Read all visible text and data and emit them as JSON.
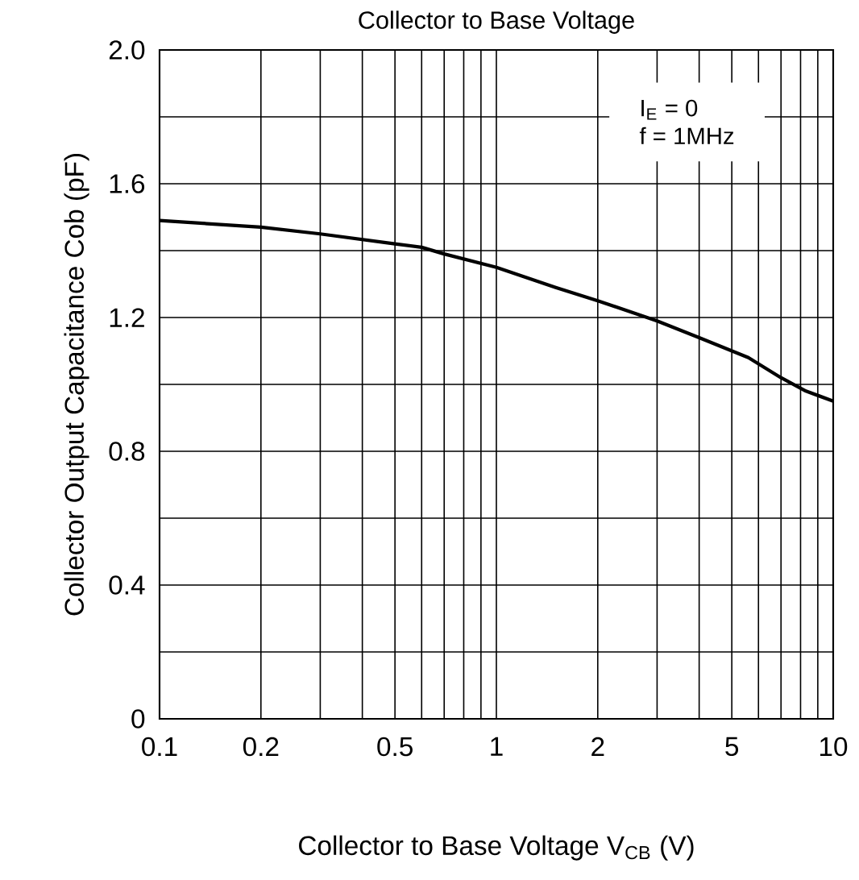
{
  "chart_data": {
    "type": "line",
    "title": "Collector to Base Voltage",
    "xlabel": "Collector to Base Voltage   V$_{CB}$ (V)",
    "ylabel": "Collector Output Capacitance    Cob    (pF)",
    "annotations": [
      "I$_{E}$ = 0",
      "f = 1MHz"
    ],
    "x": [
      0.1,
      0.2,
      0.3,
      0.5,
      0.6,
      0.7,
      1,
      1.5,
      2,
      3,
      4,
      5.6,
      7,
      8.3,
      10
    ],
    "values": [
      1.49,
      1.47,
      1.45,
      1.42,
      1.41,
      1.39,
      1.35,
      1.29,
      1.25,
      1.19,
      1.14,
      1.08,
      1.02,
      0.98,
      0.95
    ],
    "color": "#000000",
    "xlim": [
      0.1,
      10
    ],
    "ylim": [
      0,
      2
    ],
    "xticks": [
      0.1,
      0.2,
      {
        "value": 0.3,
        "label": null
      },
      {
        "value": 0.4,
        "label": null
      },
      0.5,
      {
        "value": 0.6,
        "label": null
      },
      {
        "value": 0.7,
        "label": null
      },
      {
        "value": 0.8,
        "label": null
      },
      {
        "value": 0.9,
        "label": null
      },
      1,
      2,
      {
        "value": 3,
        "label": null
      },
      {
        "value": 4,
        "label": null
      },
      5,
      {
        "value": 6,
        "label": null
      },
      {
        "value": 7,
        "label": null
      },
      {
        "value": 8,
        "label": null
      },
      {
        "value": 9,
        "label": null
      },
      10
    ],
    "yticks": [
      0,
      {
        "value": 0.2,
        "label": null
      },
      0.4,
      {
        "value": 0.6,
        "label": null
      },
      0.8,
      {
        "value": 1,
        "label": null
      },
      1.2,
      {
        "value": 1.4,
        "label": null
      },
      1.6,
      {
        "value": 1.8,
        "label": null
      },
      {
        "value": 2,
        "label": "2.0"
      }
    ],
    "grid": true,
    "log": "x",
    "marker": "none",
    "line_style": "solid"
  }
}
